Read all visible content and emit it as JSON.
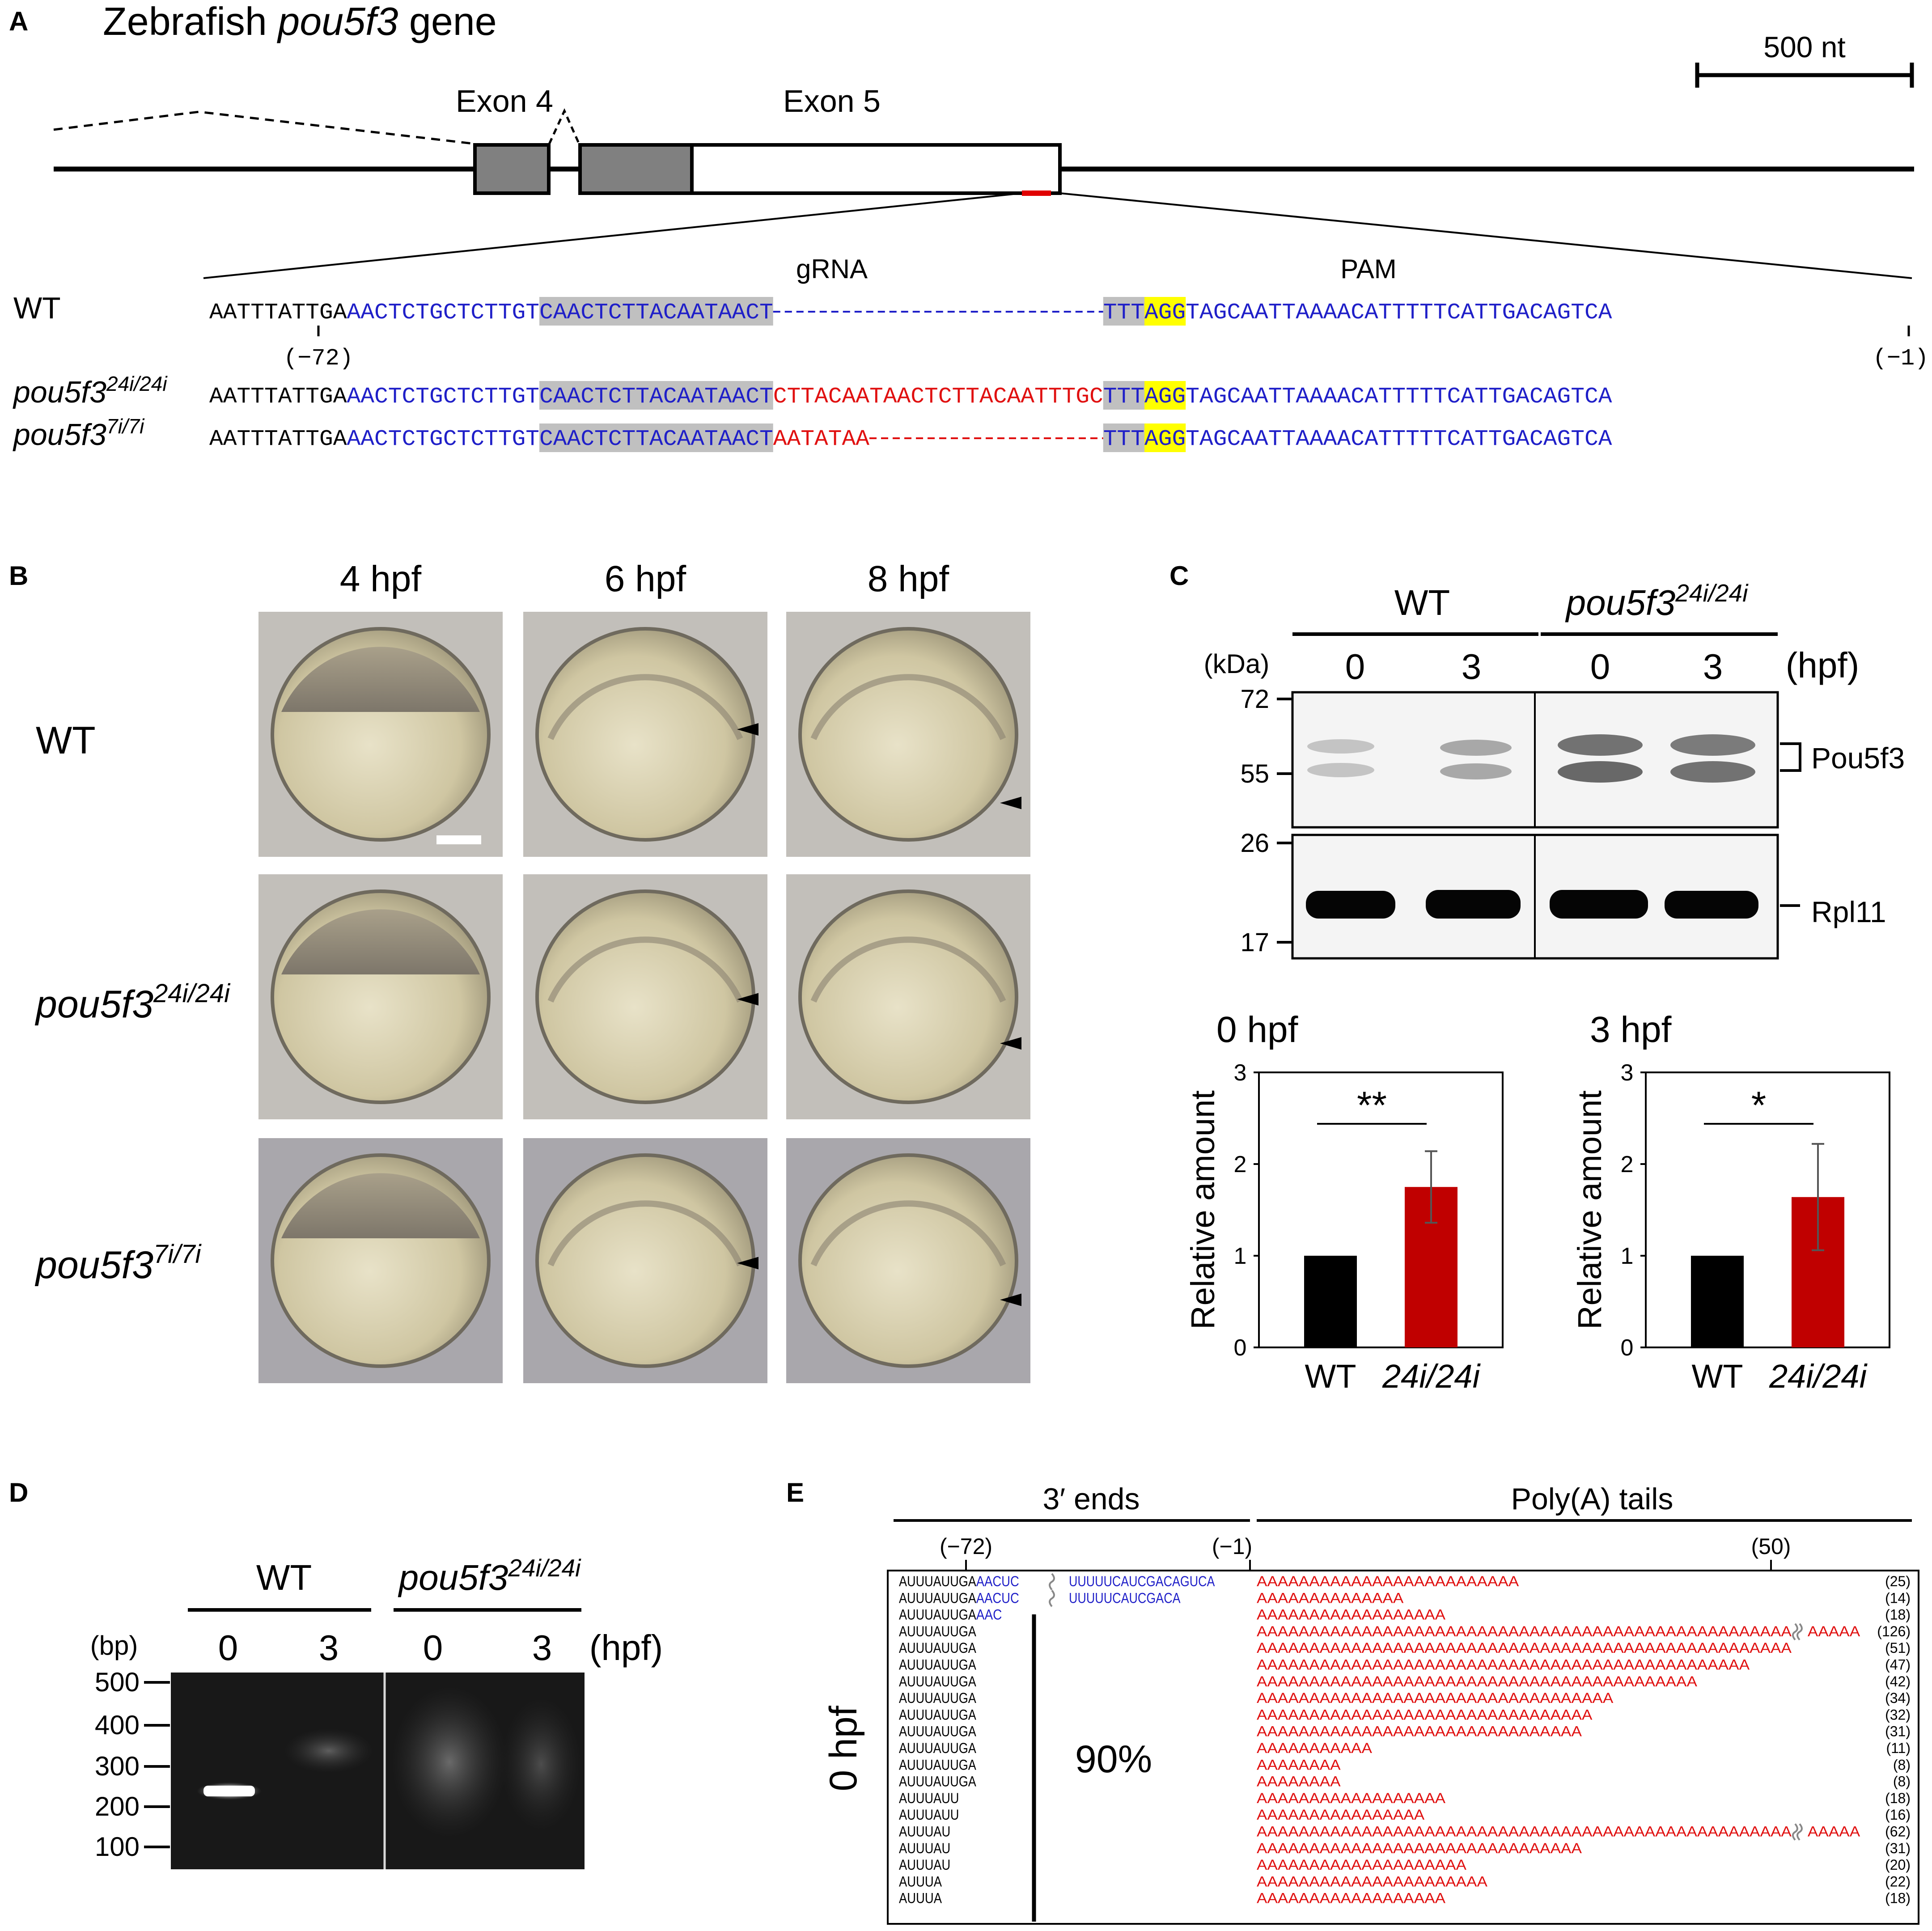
{
  "panelA": {
    "label": "A",
    "title_prefix": "Zebrafish ",
    "title_gene": "pou5f3",
    "title_suffix": " gene",
    "scale_bar": "500 nt",
    "exon4": "Exon 4",
    "exon5": "Exon 5",
    "grna": "gRNA",
    "pam": "PAM",
    "pos_left": "(−72)",
    "pos_right": "(−1)",
    "rows": [
      {
        "label_main": "WT",
        "label_sup": "",
        "segments": [
          {
            "t": "AATTTATTGA",
            "c": "black",
            "hl": ""
          },
          {
            "t": "AACTCTGCTCTTGT",
            "c": "blue",
            "hl": ""
          },
          {
            "t": "CAACTCTTACAATAACT",
            "c": "blue",
            "hl": "gray"
          },
          {
            "t": "------------------------",
            "c": "blue",
            "hl": ""
          },
          {
            "t": "TTT",
            "c": "blue",
            "hl": "gray"
          },
          {
            "t": "AGG",
            "c": "blue",
            "hl": "yellow"
          },
          {
            "t": "TAGCAATTAAAACATTTTTCATTGACAGTCA",
            "c": "blue",
            "hl": ""
          }
        ]
      },
      {
        "label_main": "pou5f3",
        "label_sup": "24i/24i",
        "segments": [
          {
            "t": "AATTTATTGA",
            "c": "black",
            "hl": ""
          },
          {
            "t": "AACTCTGCTCTTGT",
            "c": "blue",
            "hl": ""
          },
          {
            "t": "CAACTCTTACAATAACT",
            "c": "blue",
            "hl": "gray"
          },
          {
            "t": "CTTACAATAACTCTTACAATTTGC",
            "c": "red",
            "hl": ""
          },
          {
            "t": "TTT",
            "c": "blue",
            "hl": "gray"
          },
          {
            "t": "AGG",
            "c": "blue",
            "hl": "yellow"
          },
          {
            "t": "TAGCAATTAAAACATTTTTCATTGACAGTCA",
            "c": "blue",
            "hl": ""
          }
        ]
      },
      {
        "label_main": "pou5f3",
        "label_sup": "7i/7i",
        "segments": [
          {
            "t": "AATTTATTGA",
            "c": "black",
            "hl": ""
          },
          {
            "t": "AACTCTGCTCTTGT",
            "c": "blue",
            "hl": ""
          },
          {
            "t": "CAACTCTTACAATAACT",
            "c": "blue",
            "hl": "gray"
          },
          {
            "t": "AATATAA",
            "c": "red",
            "hl": ""
          },
          {
            "t": "-----------------",
            "c": "red",
            "hl": ""
          },
          {
            "t": "TTT",
            "c": "blue",
            "hl": "gray"
          },
          {
            "t": "AGG",
            "c": "blue",
            "hl": "yellow"
          },
          {
            "t": "TAGCAATTAAAACATTTTTCATTGACAGTCA",
            "c": "blue",
            "hl": ""
          }
        ]
      }
    ]
  },
  "panelB": {
    "label": "B",
    "columns": [
      "4 hpf",
      "6 hpf",
      "8 hpf"
    ],
    "rows": [
      {
        "label_main": "WT",
        "label_sup": ""
      },
      {
        "label_main": "pou5f3",
        "label_sup": "24i/24i"
      },
      {
        "label_main": "pou5f3",
        "label_sup": "7i/7i"
      }
    ]
  },
  "panelC": {
    "label": "C",
    "group_wt": "WT",
    "group_mut_main": "pou5f3",
    "group_mut_sup": "24i/24i",
    "kda": "(kDa)",
    "hpf_unit": "(hpf)",
    "lanes": [
      "0",
      "3",
      "0",
      "3"
    ],
    "markers_top": [
      "72",
      "55"
    ],
    "markers_bottom": [
      "26",
      "17"
    ],
    "protein_top": "Pou5f3",
    "protein_bottom": "Rpl11",
    "ylabel": "Relative amount"
  },
  "chart_data": [
    {
      "type": "bar",
      "title": "0 hpf",
      "categories": [
        "WT",
        "24i/24i"
      ],
      "values": [
        1.0,
        1.75
      ],
      "errors": [
        0,
        0.39
      ],
      "ylabel": "Relative amount",
      "ylim": [
        0,
        3
      ],
      "yticks": [
        "0",
        "1",
        "2",
        "3"
      ],
      "significance": "**",
      "colors": [
        "#000000",
        "#c00000"
      ]
    },
    {
      "type": "bar",
      "title": "3 hpf",
      "categories": [
        "WT",
        "24i/24i"
      ],
      "values": [
        1.0,
        1.64
      ],
      "errors": [
        0,
        0.58
      ],
      "ylabel": "Relative amount",
      "ylim": [
        0,
        3
      ],
      "yticks": [
        "0",
        "1",
        "2",
        "3"
      ],
      "significance": "*",
      "colors": [
        "#000000",
        "#c00000"
      ]
    }
  ],
  "panelD": {
    "label": "D",
    "group_wt": "WT",
    "group_mut_main": "pou5f3",
    "group_mut_sup": "24i/24i",
    "bp": "(bp)",
    "hpf_unit": "(hpf)",
    "lanes": [
      "0",
      "3",
      "0",
      "3"
    ],
    "markers": [
      "500",
      "400",
      "300",
      "200",
      "100"
    ]
  },
  "panelE": {
    "label": "E",
    "header_ends": "3′ ends",
    "header_tails": "Poly(A) tails",
    "pos_left": "(−72)",
    "pos_right": "(−1)",
    "pos_50": "(50)",
    "side_label": "0 hpf",
    "percent": "90%",
    "reads": [
      {
        "black": "AUUUAUUGA",
        "blue": "AACUC",
        "blue2": "UUUUUCAUCGACAGUCA",
        "polyA": "AAAAAAAAAAAAAAAAAAAAAAAAA",
        "polyA2": "",
        "count": "(25)"
      },
      {
        "black": "AUUUAUUGA",
        "blue": "AACUC",
        "blue2": "UUUUUCAUCGACA",
        "polyA": "AAAAAAAAAAAAAA",
        "polyA2": "",
        "count": "(14)"
      },
      {
        "black": "AUUUAUUGA",
        "blue": "AAC",
        "blue2": "",
        "polyA": "AAAAAAAAAAAAAAAAAA",
        "polyA2": "",
        "count": "(18)"
      },
      {
        "black": "AUUUAUUGA",
        "blue": "",
        "blue2": "",
        "polyA": "AAAAAAAAAAAAAAAAAAAAAAAAAAAAAAAAAAAAAAAAAAAAAAAAAAA",
        "polyA2": "AAAAA",
        "count": "(126)"
      },
      {
        "black": "AUUUAUUGA",
        "blue": "",
        "blue2": "",
        "polyA": "AAAAAAAAAAAAAAAAAAAAAAAAAAAAAAAAAAAAAAAAAAAAAAAAAAA",
        "polyA2": "",
        "count": "(51)"
      },
      {
        "black": "AUUUAUUGA",
        "blue": "",
        "blue2": "",
        "polyA": "AAAAAAAAAAAAAAAAAAAAAAAAAAAAAAAAAAAAAAAAAAAAAAA",
        "polyA2": "",
        "count": "(47)"
      },
      {
        "black": "AUUUAUUGA",
        "blue": "",
        "blue2": "",
        "polyA": "AAAAAAAAAAAAAAAAAAAAAAAAAAAAAAAAAAAAAAAAAA",
        "polyA2": "",
        "count": "(42)"
      },
      {
        "black": "AUUUAUUGA",
        "blue": "",
        "blue2": "",
        "polyA": "AAAAAAAAAAAAAAAAAAAAAAAAAAAAAAAAAA",
        "polyA2": "",
        "count": "(34)"
      },
      {
        "black": "AUUUAUUGA",
        "blue": "",
        "blue2": "",
        "polyA": "AAAAAAAAAAAAAAAAAAAAAAAAAAAAAAAA",
        "polyA2": "",
        "count": "(32)"
      },
      {
        "black": "AUUUAUUGA",
        "blue": "",
        "blue2": "",
        "polyA": "AAAAAAAAAAAAAAAAAAAAAAAAAAAAAAA",
        "polyA2": "",
        "count": "(31)"
      },
      {
        "black": "AUUUAUUGA",
        "blue": "",
        "blue2": "",
        "polyA": "AAAAAAAAAAA",
        "polyA2": "",
        "count": "(11)"
      },
      {
        "black": "AUUUAUUGA",
        "blue": "",
        "blue2": "",
        "polyA": "AAAAAAAA",
        "polyA2": "",
        "count": "(8)"
      },
      {
        "black": "AUUUAUUGA",
        "blue": "",
        "blue2": "",
        "polyA": "AAAAAAAA",
        "polyA2": "",
        "count": "(8)"
      },
      {
        "black": "AUUUAUU",
        "blue": "",
        "blue2": "",
        "polyA": "AAAAAAAAAAAAAAAAAA",
        "polyA2": "",
        "count": "(18)"
      },
      {
        "black": "AUUUAUU",
        "blue": "",
        "blue2": "",
        "polyA": "AAAAAAAAAAAAAAAA",
        "polyA2": "",
        "count": "(16)"
      },
      {
        "black": "AUUUAU",
        "blue": "",
        "blue2": "",
        "polyA": "AAAAAAAAAAAAAAAAAAAAAAAAAAAAAAAAAAAAAAAAAAAAAAAAAAA",
        "polyA2": "AAAAA",
        "count": "(62)"
      },
      {
        "black": "AUUUAU",
        "blue": "",
        "blue2": "",
        "polyA": "AAAAAAAAAAAAAAAAAAAAAAAAAAAAAAA",
        "polyA2": "",
        "count": "(31)"
      },
      {
        "black": "AUUUAU",
        "blue": "",
        "blue2": "",
        "polyA": "AAAAAAAAAAAAAAAAAAAA",
        "polyA2": "",
        "count": "(20)"
      },
      {
        "black": "AUUUA",
        "blue": "",
        "blue2": "",
        "polyA": "AAAAAAAAAAAAAAAAAAAAAA",
        "polyA2": "",
        "count": "(22)"
      },
      {
        "black": "AUUUA",
        "blue": "",
        "blue2": "",
        "polyA": "AAAAAAAAAAAAAAAAAA",
        "polyA2": "",
        "count": "(18)"
      }
    ]
  },
  "colors": {
    "black_seq": "#000000",
    "blue_seq": "#1f1fc8",
    "red_seq": "#e01010",
    "gray_highlight": "#c0c0c0",
    "pam_highlight": "#ffff00",
    "bar_wt": "#000000",
    "bar_mut": "#c00000"
  }
}
